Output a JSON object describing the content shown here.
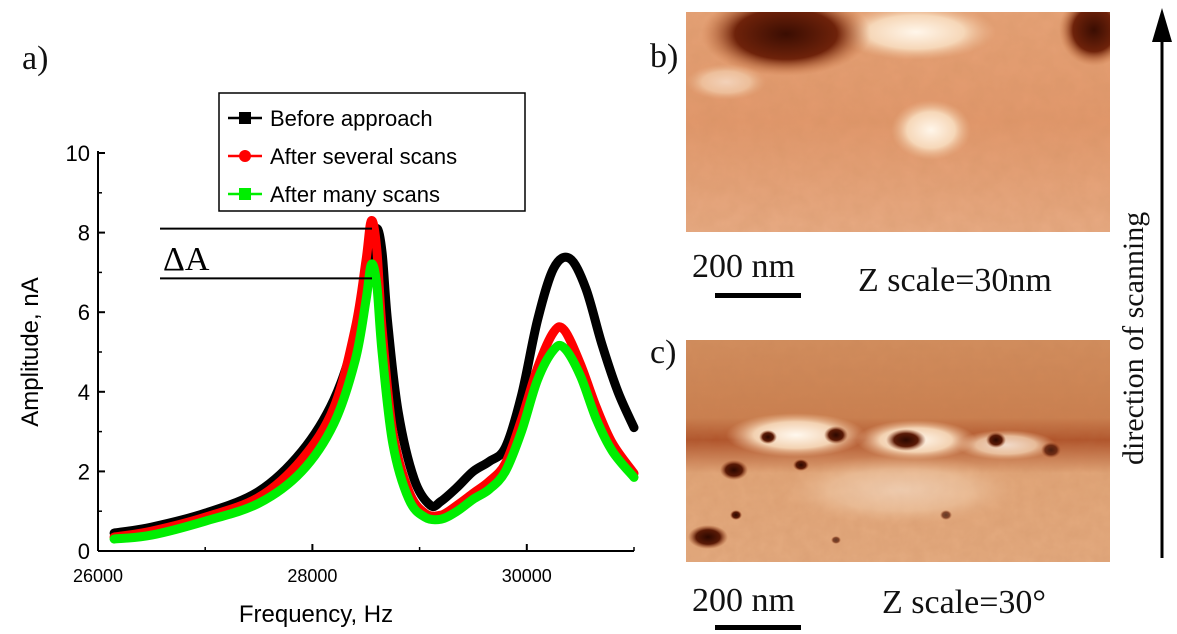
{
  "chart_data": {
    "type": "line",
    "panel_label": "a)",
    "xlabel": "Frequency, Hz",
    "ylabel": "Amplitude, nA",
    "xlim": [
      26000,
      31000
    ],
    "ylim": [
      0,
      10
    ],
    "xticks": [
      26000,
      28000,
      30000
    ],
    "yticks": [
      0,
      2,
      4,
      6,
      8,
      10
    ],
    "xtick_labels": [
      "26000",
      "28000",
      "30000"
    ],
    "ytick_labels": [
      "0",
      "2",
      "4",
      "6",
      "8",
      "10"
    ],
    "legend_position": "top",
    "annotation": "ΔA",
    "delta_a_levels": [
      8.1,
      6.85
    ],
    "series": [
      {
        "name": "Before approach",
        "color": "#000000",
        "marker": "square",
        "x": [
          26150,
          26500,
          27000,
          27500,
          27900,
          28200,
          28400,
          28550,
          28600,
          28650,
          28700,
          28800,
          28950,
          29100,
          29200,
          29350,
          29500,
          29650,
          29800,
          29950,
          30100,
          30250,
          30400,
          30550,
          30700,
          30850,
          31000
        ],
        "y": [
          0.45,
          0.6,
          0.95,
          1.5,
          2.5,
          3.8,
          5.4,
          7.4,
          8.1,
          7.5,
          5.8,
          3.5,
          1.8,
          1.15,
          1.25,
          1.6,
          2.0,
          2.25,
          2.6,
          3.9,
          5.8,
          7.1,
          7.35,
          6.6,
          5.2,
          4.0,
          3.1
        ]
      },
      {
        "name": "After several scans",
        "color": "#ff0000",
        "marker": "circle",
        "x": [
          26150,
          26500,
          27000,
          27500,
          27900,
          28200,
          28400,
          28500,
          28550,
          28600,
          28650,
          28750,
          28900,
          29050,
          29200,
          29350,
          29500,
          29650,
          29800,
          29950,
          30100,
          30250,
          30350,
          30500,
          30650,
          30800,
          31000
        ],
        "y": [
          0.35,
          0.5,
          0.85,
          1.35,
          2.3,
          3.6,
          5.6,
          7.3,
          8.3,
          7.6,
          5.6,
          3.0,
          1.5,
          0.95,
          0.9,
          1.15,
          1.45,
          1.75,
          2.2,
          3.3,
          4.6,
          5.5,
          5.55,
          4.7,
          3.6,
          2.7,
          1.95
        ]
      },
      {
        "name": "After many scans",
        "color": "#00ee00",
        "marker": "square",
        "x": [
          26150,
          26500,
          27000,
          27500,
          27900,
          28200,
          28400,
          28500,
          28550,
          28600,
          28650,
          28750,
          28900,
          29050,
          29200,
          29350,
          29500,
          29650,
          29800,
          29950,
          30100,
          30250,
          30350,
          30500,
          30650,
          30800,
          31000
        ],
        "y": [
          0.3,
          0.4,
          0.75,
          1.2,
          2.0,
          3.2,
          4.8,
          6.3,
          7.2,
          6.7,
          5.0,
          2.7,
          1.3,
          0.85,
          0.8,
          1.0,
          1.3,
          1.55,
          2.0,
          3.0,
          4.3,
          5.05,
          5.1,
          4.4,
          3.3,
          2.5,
          1.85
        ]
      }
    ]
  },
  "panels": {
    "b": {
      "label": "b)",
      "scalebar_text": "200 nm",
      "zscale_text": "Z scale=30nm",
      "image_description": "afm-topography-image"
    },
    "c": {
      "label": "c)",
      "scalebar_text": "200 nm",
      "zscale_text": "Z scale=30°",
      "image_description": "afm-phase-image"
    }
  },
  "arrow": {
    "label": "direction of scanning"
  }
}
